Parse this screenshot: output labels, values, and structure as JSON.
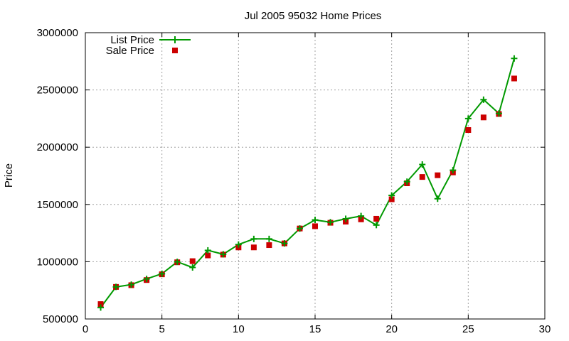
{
  "chart_data": {
    "type": "line",
    "title": "Jul 2005 95032 Home Prices",
    "xlabel": "",
    "ylabel": "Price",
    "xlim": [
      0,
      30
    ],
    "ylim": [
      500000,
      3000000
    ],
    "xticks": [
      0,
      5,
      10,
      15,
      20,
      25,
      30
    ],
    "yticks": [
      500000,
      1000000,
      1500000,
      2000000,
      2500000,
      3000000
    ],
    "xtick_labels": [
      "0",
      "5",
      "10",
      "15",
      "20",
      "25",
      "30"
    ],
    "ytick_labels": [
      "500000",
      "1000000",
      "1500000",
      "2000000",
      "2500000",
      "3000000"
    ],
    "grid": true,
    "legend_position": "top-left",
    "x": [
      1,
      2,
      3,
      4,
      5,
      6,
      7,
      8,
      9,
      10,
      11,
      12,
      13,
      14,
      15,
      16,
      17,
      18,
      19,
      20,
      21,
      22,
      23,
      24,
      25,
      26,
      27,
      28
    ],
    "series": [
      {
        "name": "List Price",
        "style": "linespoints",
        "marker": "plus",
        "color": "#009900",
        "values": [
          600000,
          780000,
          800000,
          850000,
          895000,
          999000,
          950000,
          1099000,
          1065000,
          1150000,
          1199000,
          1199000,
          1160000,
          1290000,
          1365000,
          1345000,
          1375000,
          1399000,
          1320000,
          1579000,
          1699000,
          1849000,
          1550000,
          1799000,
          2250000,
          2415000,
          2295000,
          2775000
        ]
      },
      {
        "name": "Sale Price",
        "style": "points",
        "marker": "square",
        "color": "#cc0000",
        "values": [
          630000,
          780000,
          795000,
          840000,
          890000,
          995000,
          1005000,
          1055000,
          1062000,
          1125000,
          1125000,
          1145000,
          1160000,
          1290000,
          1310000,
          1340000,
          1350000,
          1370000,
          1375000,
          1545000,
          1685000,
          1740000,
          1755000,
          1780000,
          2150000,
          2260000,
          2290000,
          2600000
        ]
      }
    ]
  }
}
